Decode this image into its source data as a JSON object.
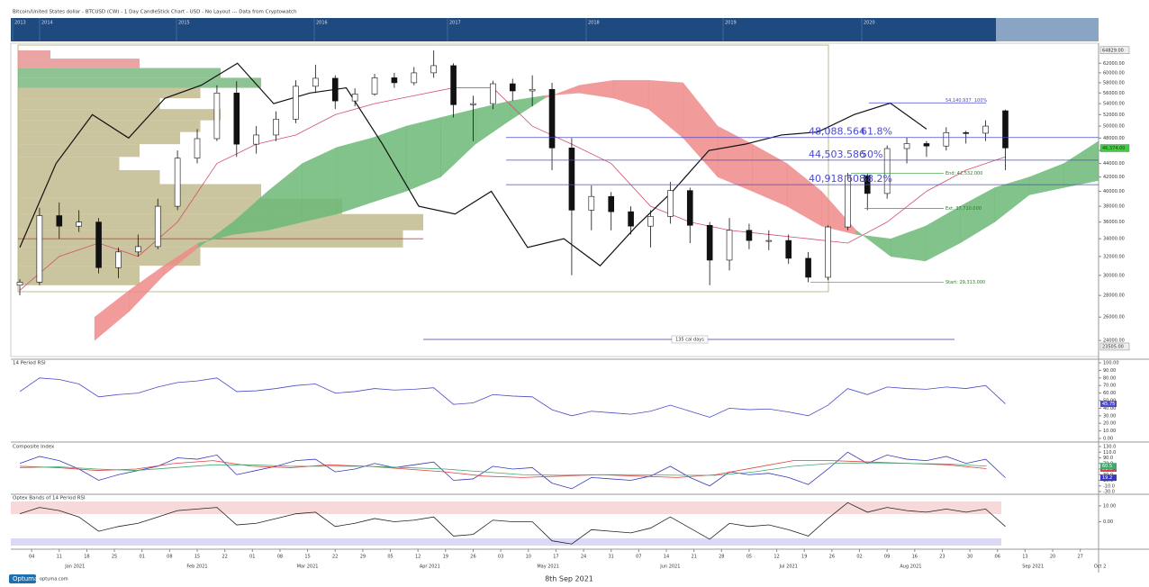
{
  "header": {
    "title": "Bitcoin/United States dollar - BTCUSD (CW) - 1 Day CandleStick Chart - USD - No Layout --- Data from Cryptowatch"
  },
  "navigator": {
    "years": [
      "2013",
      "2014",
      "2015",
      "2016",
      "2017",
      "2018",
      "2019",
      "2020"
    ]
  },
  "chart_data": [
    {
      "type": "candlestick",
      "log_scale": true,
      "ylim": [
        23000,
        66000
      ],
      "yticks": [
        {
          "value": 24000,
          "label": "24000.00"
        },
        {
          "value": 26000,
          "label": "26000.00"
        },
        {
          "value": 28000,
          "label": "28000.00"
        },
        {
          "value": 30000,
          "label": "30000.00"
        },
        {
          "value": 32000,
          "label": "32000.00"
        },
        {
          "value": 34000,
          "label": "34000.00"
        },
        {
          "value": 36000,
          "label": "36000.00"
        },
        {
          "value": 38000,
          "label": "38000.00"
        },
        {
          "value": 40000,
          "label": "40000.00"
        },
        {
          "value": 42000,
          "label": "42000.00"
        },
        {
          "value": 44000,
          "label": "44000.00"
        },
        {
          "value": 46000,
          "label": "46000.00"
        },
        {
          "value": 48000,
          "label": "48000.00"
        },
        {
          "value": 50000,
          "label": "50000.00"
        },
        {
          "value": 52000,
          "label": "52000.00"
        },
        {
          "value": 54000,
          "label": "54000.00"
        },
        {
          "value": 56000,
          "label": "56000.00"
        },
        {
          "value": 58000,
          "label": "58000.00"
        },
        {
          "value": 60000,
          "label": "60000.00"
        },
        {
          "value": 62000,
          "label": "62000.00"
        }
      ],
      "open": [
        29000,
        29300,
        36800,
        35500,
        36000,
        30800,
        32500,
        33100,
        38000,
        44800,
        47900,
        56000,
        47000,
        48500,
        51200,
        57300,
        58900,
        54500,
        55800,
        59000,
        58000,
        60000,
        61500,
        53800,
        54000,
        57800,
        56400,
        56700,
        46400,
        37500,
        39300,
        37300,
        35500,
        36700,
        40100,
        35600,
        31600,
        35000,
        33800,
        33800,
        31800,
        29800,
        35400,
        42200,
        39700,
        46300,
        47100,
        46700,
        48900,
        48800,
        52700
      ],
      "high": [
        29600,
        37800,
        38500,
        37500,
        36500,
        33000,
        34500,
        39000,
        46000,
        49500,
        57500,
        58300,
        50000,
        52600,
        58500,
        61700,
        59500,
        56900,
        59800,
        60000,
        61200,
        64800,
        62000,
        55500,
        58400,
        58800,
        59500,
        58000,
        48000,
        40800,
        39900,
        38000,
        37500,
        41300,
        40500,
        36000,
        36500,
        35800,
        35000,
        34500,
        32500,
        35600,
        42600,
        42500,
        46800,
        48100,
        47500,
        49800,
        49200,
        51000,
        52900
      ],
      "low": [
        28000,
        29000,
        34000,
        34800,
        30200,
        29700,
        32000,
        32800,
        37500,
        44000,
        47500,
        45000,
        45500,
        47500,
        50500,
        56000,
        53000,
        53500,
        55500,
        57000,
        57500,
        59000,
        51500,
        47500,
        53000,
        54500,
        53500,
        43000,
        30000,
        35000,
        35000,
        34500,
        33000,
        35800,
        33500,
        29000,
        30500,
        32800,
        32700,
        31200,
        29300,
        29500,
        35000,
        37500,
        39000,
        44000,
        45000,
        46000,
        47100,
        47500,
        43000
      ],
      "close": [
        29300,
        36800,
        35500,
        36000,
        30800,
        32500,
        33100,
        38000,
        44800,
        47900,
        56000,
        47000,
        48500,
        51200,
        57300,
        58900,
        54500,
        55800,
        59000,
        58000,
        60000,
        61500,
        53800,
        54000,
        57800,
        56400,
        56700,
        46400,
        37500,
        39300,
        37300,
        35500,
        36700,
        40100,
        35600,
        31600,
        35000,
        33800,
        33800,
        31800,
        29800,
        35400,
        42200,
        39700,
        46300,
        47100,
        46700,
        48900,
        48800,
        50000,
        46400
      ],
      "up_color": "#ffffff",
      "down_color": "#111111",
      "span_a": [
        24000,
        26500,
        30000,
        33000,
        36000,
        40000,
        44000,
        46500,
        48000,
        50000,
        51500,
        53000,
        54500,
        55500,
        56000,
        55000,
        53000,
        48000,
        42000,
        40000,
        38000,
        35500,
        34500,
        34000,
        35500,
        38000,
        40500,
        42000,
        44000,
        47500
      ],
      "span_b": [
        26000,
        28500,
        31000,
        33500,
        34500,
        35000,
        36000,
        37000,
        38500,
        40000,
        42000,
        47000,
        51000,
        55000,
        57500,
        58500,
        58500,
        58000,
        50000,
        47000,
        44000,
        40000,
        35000,
        32000,
        31500,
        33500,
        36000,
        39500,
        40500,
        41500
      ],
      "cloud_colors": [
        "#6cb877",
        "#ee8a8a"
      ],
      "kijun": [
        28500,
        32000,
        33500,
        32000,
        36000,
        44000,
        47000,
        48500,
        52000,
        54000,
        55500,
        57000,
        57000,
        50000,
        47000,
        44000,
        38000,
        36000,
        35000,
        34500,
        34000,
        33500,
        36000,
        40000,
        43000,
        45000
      ],
      "kijun_color": "#d0506a",
      "chikou": [
        33000,
        44000,
        52000,
        48000,
        55000,
        57500,
        62000,
        54000,
        56000,
        57000,
        47000,
        38000,
        37000,
        40000,
        33000,
        34000,
        31000,
        35500,
        40000,
        46000,
        47000,
        48500,
        49000,
        52000,
        54100,
        49500
      ],
      "volume_profile": {
        "bins": [
          29000,
          31000,
          33000,
          35000,
          37000,
          39000,
          41000,
          43000,
          45000,
          47000,
          49000,
          51000,
          53000,
          55000,
          57000,
          59000,
          61000,
          63000,
          64800
        ],
        "values": [
          30,
          45,
          95,
          100,
          80,
          60,
          35,
          25,
          30,
          40,
          45,
          50,
          35,
          45,
          60,
          50,
          30,
          8
        ],
        "colors": [
          "#b8b27e",
          "#b8b27e",
          "#b8b27e",
          "#b8b27e",
          "#b8b27e",
          "#b8b27e",
          "#b8b27e",
          "#b8b27e",
          "#b8b27e",
          "#b8b27e",
          "#b8b27e",
          "#b8b27e",
          "#b8b27e",
          "#b8b27e",
          "#68b070",
          "#68b070",
          "#e48585",
          "#e48585"
        ]
      },
      "poc": 34000,
      "fib": {
        "values": [
          54140.937,
          48088.564,
          44503.586,
          40918.608
        ],
        "value_labels": [
          "54,140.937",
          "48,088.564",
          "44,503.586",
          "40,918.608"
        ],
        "levels": [
          "100%",
          "61.8%",
          "50%",
          "38.2%"
        ]
      },
      "projection": {
        "values": [
          29313,
          42532,
          37710
        ],
        "value_labels": [
          "Start: 29,313.000",
          "End: 42,532.000",
          "Ext: 37,710.000"
        ]
      },
      "price_marks": {
        "values": [
          64829,
          46374,
          23505
        ],
        "value_labels": [
          "64829.00",
          "46,374.00",
          "23505.00"
        ]
      },
      "annotation": "135 cal days"
    },
    {
      "type": "line",
      "title": "14 Period RSI",
      "ylim": [
        0,
        100
      ],
      "yticks": [
        {
          "value": 100,
          "label": "100.00"
        },
        {
          "value": 90,
          "label": "90.00"
        },
        {
          "value": 80,
          "label": "80.00"
        },
        {
          "value": 70,
          "label": "70.00"
        },
        {
          "value": 60,
          "label": "60.00"
        },
        {
          "value": 50,
          "label": "50.00"
        },
        {
          "value": 40,
          "label": "40.00"
        },
        {
          "value": 30,
          "label": "30.00"
        },
        {
          "value": 20,
          "label": "20.00"
        },
        {
          "value": 10,
          "label": "10.00"
        },
        {
          "value": 0,
          "label": "0.00"
        }
      ],
      "series": [
        {
          "color": "#4a4ac8",
          "values": [
            62,
            80,
            78,
            72,
            55,
            58,
            60,
            68,
            74,
            76,
            80,
            62,
            63,
            66,
            70,
            72,
            60,
            62,
            66,
            64,
            65,
            67,
            45,
            47,
            58,
            56,
            55,
            38,
            30,
            36,
            34,
            32,
            36,
            44,
            36,
            28,
            40,
            38,
            39,
            35,
            30,
            44,
            66,
            58,
            68,
            66,
            65,
            68,
            66,
            70,
            45.75
          ]
        }
      ]
    },
    {
      "type": "line",
      "title": "Composite Index",
      "ylim": [
        -30,
        130
      ],
      "yticks": [
        {
          "value": 130,
          "label": "130.0"
        },
        {
          "value": 110,
          "label": "110.0"
        },
        {
          "value": 90,
          "label": "90.0"
        },
        {
          "value": 70,
          "label": "70.0"
        },
        {
          "value": 50,
          "label": "50.0"
        },
        {
          "value": 30,
          "label": "30.0"
        },
        {
          "value": 10,
          "label": "10.0"
        },
        {
          "value": -10,
          "label": "-10.0"
        },
        {
          "value": -30,
          "label": "-30.0"
        }
      ],
      "series": [
        {
          "color": "#3a3ab8",
          "values": [
            70,
            95,
            80,
            50,
            10,
            30,
            45,
            60,
            90,
            85,
            100,
            30,
            45,
            60,
            80,
            85,
            40,
            50,
            70,
            55,
            65,
            75,
            10,
            15,
            60,
            50,
            55,
            0,
            -20,
            20,
            15,
            10,
            25,
            60,
            20,
            -10,
            40,
            30,
            35,
            20,
            -5,
            50,
            110,
            70,
            100,
            85,
            80,
            95,
            70,
            85,
            19.2
          ]
        },
        {
          "color": "#e04040",
          "values": [
            60,
            55,
            45,
            50,
            70,
            80,
            60,
            55,
            65,
            60,
            50,
            40,
            25,
            20,
            25,
            30,
            25,
            20,
            30,
            55,
            80,
            80,
            75,
            70,
            65,
            51.6
          ]
        },
        {
          "color": "#40a870",
          "values": [
            55,
            58,
            50,
            45,
            55,
            65,
            65,
            60,
            60,
            60,
            55,
            50,
            40,
            30,
            28,
            30,
            30,
            28,
            28,
            40,
            60,
            70,
            72,
            70,
            68,
            60.5
          ]
        }
      ]
    },
    {
      "type": "line",
      "title": "Optex Bands of 14 Period RSI",
      "ylim": [
        -15,
        15
      ],
      "yticks": [
        {
          "value": 10,
          "label": "10.00"
        },
        {
          "value": 0,
          "label": "0.00"
        }
      ],
      "series": [
        {
          "color": "#222222",
          "values": [
            5,
            9,
            7,
            3,
            -6,
            -3,
            -1,
            3,
            7,
            8,
            9,
            -2,
            -1,
            2,
            5,
            6,
            -3,
            -1,
            2,
            0,
            1,
            3,
            -9,
            -8,
            1,
            0,
            0,
            -12,
            -14,
            -5,
            -6,
            -7,
            -4,
            3,
            -4,
            -11,
            -1,
            -3,
            -2,
            -5,
            -9,
            2,
            12,
            6,
            9,
            7,
            6,
            8,
            6,
            8,
            -3
          ]
        }
      ]
    }
  ],
  "date_axis": {
    "days": [
      "04",
      "11",
      "18",
      "25",
      "01",
      "08",
      "15",
      "22",
      "01",
      "08",
      "15",
      "22",
      "29",
      "05",
      "12",
      "19",
      "26",
      "03",
      "10",
      "17",
      "24",
      "31",
      "07",
      "14",
      "21",
      "28",
      "05",
      "12",
      "19",
      "26",
      "02",
      "09",
      "16",
      "23",
      "30",
      "06",
      "13",
      "20",
      "27"
    ],
    "months": [
      "Jan 2021",
      "Feb 2021",
      "Mar 2021",
      "Apr 2021",
      "May 2021",
      "Jun 2021",
      "Jul 2021",
      "Aug 2021",
      "Sep 2021",
      "Oct 2"
    ]
  },
  "footer": {
    "brand": "Optuma",
    "site": "optuma.com",
    "date": "8th Sep 2021"
  }
}
